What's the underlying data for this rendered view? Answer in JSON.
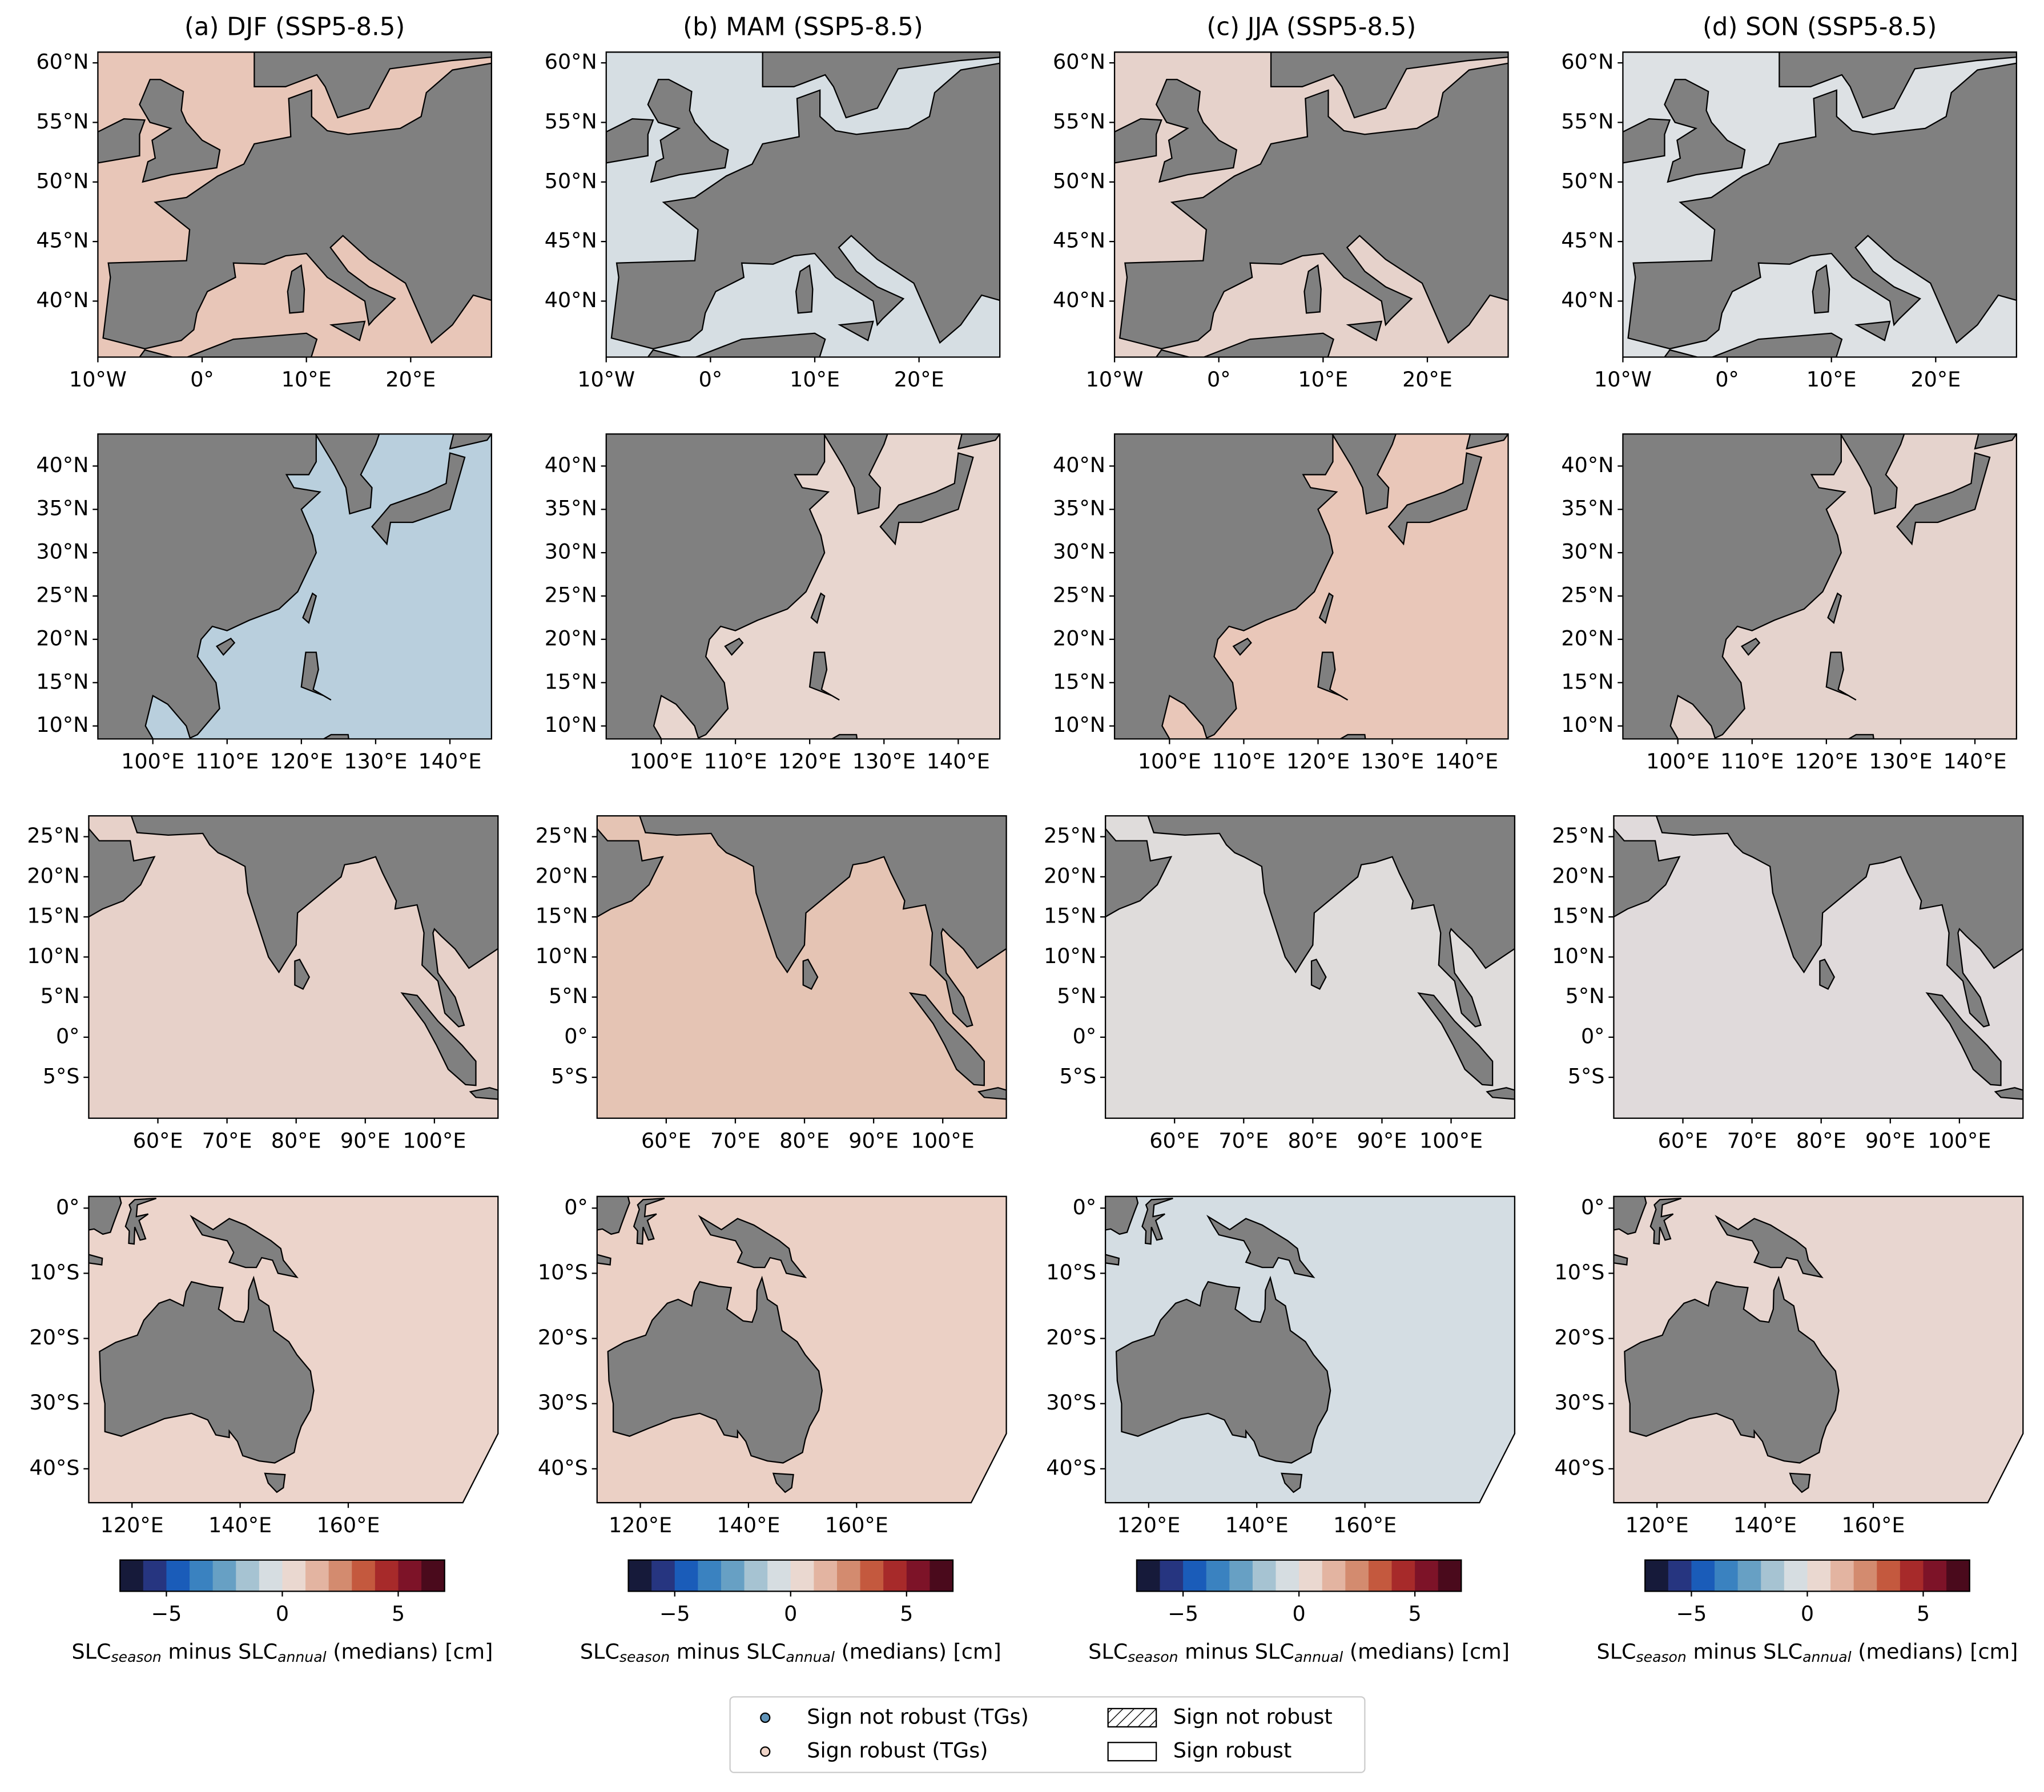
{
  "panel_titles": [
    "(a) DJF (SSP5-8.5)",
    "(b) MAM (SSP5-8.5)",
    "(c) JJA (SSP5-8.5)",
    "(d) SON (SSP5-8.5)"
  ],
  "regions": [
    {
      "xlim": [
        -10,
        27.75
      ],
      "ylim": [
        35.3,
        60.9
      ],
      "xticks": [
        {
          "value": -10,
          "label": "10°W"
        },
        {
          "value": 0,
          "label": "0°"
        },
        {
          "value": 10,
          "label": "10°E"
        },
        {
          "value": 20,
          "label": "20°E"
        }
      ],
      "yticks": [
        {
          "value": 60,
          "label": "60°N"
        },
        {
          "value": 55,
          "label": "55°N"
        },
        {
          "value": 50,
          "label": "50°N"
        },
        {
          "value": 45,
          "label": "45°N"
        },
        {
          "value": 40,
          "label": "40°N"
        }
      ],
      "ocean_colors": [
        "#e8c6b8",
        "#d6dee3",
        "#e6d2cb",
        "#dde1e4"
      ]
    },
    {
      "xlim": [
        92.6,
        145.6
      ],
      "ylim": [
        8.5,
        43.7
      ],
      "xticks": [
        {
          "value": 100,
          "label": "100°E"
        },
        {
          "value": 110,
          "label": "110°E"
        },
        {
          "value": 120,
          "label": "120°E"
        },
        {
          "value": 130,
          "label": "130°E"
        },
        {
          "value": 140,
          "label": "140°E"
        }
      ],
      "yticks": [
        {
          "value": 40,
          "label": "40°N"
        },
        {
          "value": 35,
          "label": "35°N"
        },
        {
          "value": 30,
          "label": "30°N"
        },
        {
          "value": 25,
          "label": "25°N"
        },
        {
          "value": 20,
          "label": "20°N"
        },
        {
          "value": 15,
          "label": "15°N"
        },
        {
          "value": 10,
          "label": "10°N"
        }
      ],
      "ocean_colors": [
        "#b9cfdd",
        "#e8d6cf",
        "#e9c7b9",
        "#e5d3cd"
      ]
    },
    {
      "xlim": [
        50,
        109.2
      ],
      "ylim": [
        -10.1,
        27.6
      ],
      "xticks": [
        {
          "value": 60,
          "label": "60°E"
        },
        {
          "value": 70,
          "label": "70°E"
        },
        {
          "value": 80,
          "label": "80°E"
        },
        {
          "value": 90,
          "label": "90°E"
        },
        {
          "value": 100,
          "label": "100°E"
        }
      ],
      "yticks": [
        {
          "value": 25,
          "label": "25°N"
        },
        {
          "value": 20,
          "label": "20°N"
        },
        {
          "value": 15,
          "label": "15°N"
        },
        {
          "value": 10,
          "label": "10°N"
        },
        {
          "value": 5,
          "label": "5°N"
        },
        {
          "value": 0,
          "label": "0°"
        },
        {
          "value": -5,
          "label": "5°S"
        }
      ],
      "ocean_colors": [
        "#e7d1c9",
        "#e5c4b4",
        "#dfdcdb",
        "#e0dadb"
      ]
    },
    {
      "xlim": [
        112,
        187.7
      ],
      "ylim": [
        -45.2,
        1.8
      ],
      "xticks": [
        {
          "value": 120,
          "label": "120°E"
        },
        {
          "value": 140,
          "label": "140°E"
        },
        {
          "value": 160,
          "label": "160°E"
        }
      ],
      "yticks": [
        {
          "value": 0,
          "label": "0°"
        },
        {
          "value": -10,
          "label": "10°S"
        },
        {
          "value": -20,
          "label": "20°S"
        },
        {
          "value": -30,
          "label": "30°S"
        },
        {
          "value": -40,
          "label": "40°S"
        }
      ],
      "ocean_colors": [
        "#ecd4cb",
        "#ebd0c5",
        "#d4dde3",
        "#e8d6d0"
      ]
    }
  ],
  "colorbar": {
    "lim": [
      -7,
      7
    ],
    "colors": [
      "#161a3a",
      "#263580",
      "#1a5cb9",
      "#3a82c0",
      "#67a0c4",
      "#a6c3d2",
      "#d6dde1",
      "#ead8d0",
      "#e3b4a1",
      "#d38b6f",
      "#c4593e",
      "#a72a2a",
      "#7d1328",
      "#4a0a1c"
    ],
    "ticks": [
      {
        "value": -5,
        "label": "−5"
      },
      0,
      5
    ],
    "label_parts": [
      "SLC",
      "season",
      " minus SLC",
      "annual",
      " (medians) [cm]"
    ]
  },
  "legend": {
    "entries": [
      "Sign not robust (TGs)",
      "Sign robust (TGs)",
      "Sign not robust",
      "Sign robust"
    ]
  }
}
